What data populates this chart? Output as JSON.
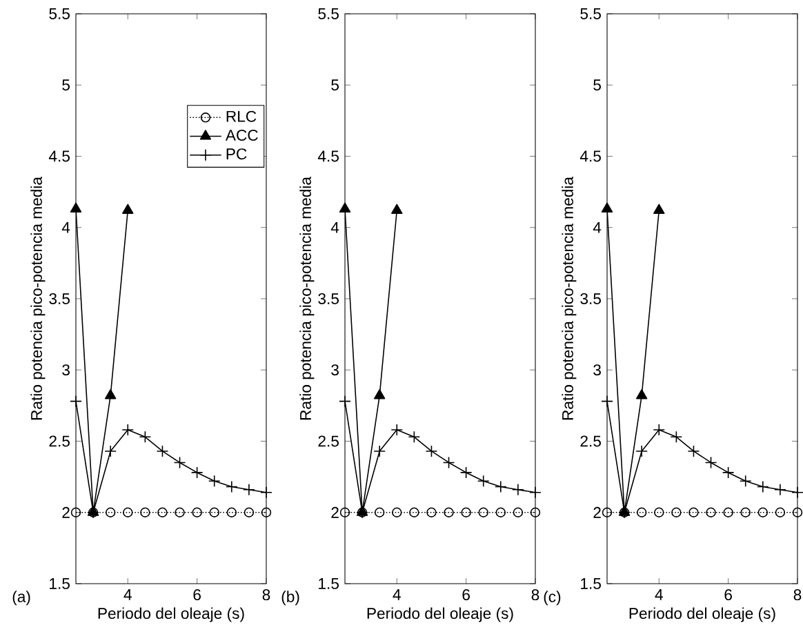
{
  "chart_data": [
    {
      "type": "line",
      "xlabel": "Periodo del oleaje (s)",
      "ylabel": "Ratio potencia pico-potencia media",
      "annotations": [
        "(a)"
      ],
      "x": [
        2.5,
        3,
        3.5,
        4,
        4.5,
        5,
        5.5,
        6,
        6.5,
        7,
        7.5,
        8
      ],
      "xlim": [
        2.5,
        8
      ],
      "ylim": [
        1.5,
        5.5
      ],
      "xticks": [
        4,
        6,
        8
      ],
      "yticks": [
        1.5,
        2,
        2.5,
        3,
        3.5,
        4,
        4.5,
        5,
        5.5
      ],
      "grid": false,
      "legend": "top right",
      "series": [
        {
          "name": "RLC",
          "color": "#000000",
          "marker": "circle",
          "line_style": "dotted",
          "values": [
            2,
            2,
            2,
            2,
            2,
            2,
            2,
            2,
            2,
            2,
            2,
            2
          ]
        },
        {
          "name": "ACC",
          "color": "#000000",
          "marker": "triangle",
          "line_style": "solid",
          "values": [
            4.13,
            2,
            2.82,
            4.12,
            null,
            null,
            null,
            null,
            null,
            null,
            null,
            null
          ]
        },
        {
          "name": "PC",
          "color": "#000000",
          "marker": "cross",
          "line_style": "solid",
          "values": [
            2.78,
            2,
            2.43,
            2.58,
            2.53,
            2.43,
            2.35,
            2.28,
            2.22,
            2.18,
            2.16,
            2.14
          ]
        }
      ]
    },
    {
      "type": "line",
      "xlabel": "Periodo del oleaje (s)",
      "ylabel": "Ratio potencia pico-potencia media",
      "annotations": [
        "(b)"
      ],
      "x": [
        2.5,
        3,
        3.5,
        4,
        4.5,
        5,
        5.5,
        6,
        6.5,
        7,
        7.5,
        8
      ],
      "xlim": [
        2.5,
        8
      ],
      "ylim": [
        1.5,
        5.5
      ],
      "xticks": [
        4,
        6,
        8
      ],
      "yticks": [
        1.5,
        2,
        2.5,
        3,
        3.5,
        4,
        4.5,
        5,
        5.5
      ],
      "grid": false,
      "series": [
        {
          "color": "#000000",
          "marker": "circle",
          "line_style": "dotted",
          "values": [
            2,
            2,
            2,
            2,
            2,
            2,
            2,
            2,
            2,
            2,
            2,
            2
          ]
        },
        {
          "color": "#000000",
          "marker": "triangle",
          "line_style": "solid",
          "values": [
            4.13,
            2,
            2.82,
            4.12,
            null,
            null,
            null,
            null,
            null,
            null,
            null,
            null
          ]
        },
        {
          "color": "#000000",
          "marker": "cross",
          "line_style": "solid",
          "values": [
            2.78,
            2,
            2.43,
            2.58,
            2.53,
            2.43,
            2.35,
            2.28,
            2.22,
            2.18,
            2.16,
            2.14
          ]
        }
      ]
    },
    {
      "type": "line",
      "xlabel": "Periodo del oleaje (s)",
      "ylabel": "Ratio potencia pico-potencia media",
      "annotations": [
        "(c)"
      ],
      "x": [
        2.5,
        3,
        3.5,
        4,
        4.5,
        5,
        5.5,
        6,
        6.5,
        7,
        7.5,
        8
      ],
      "xlim": [
        2.5,
        8
      ],
      "ylim": [
        1.5,
        5.5
      ],
      "xticks": [
        4,
        6,
        8
      ],
      "yticks": [
        1.5,
        2,
        2.5,
        3,
        3.5,
        4,
        4.5,
        5,
        5.5
      ],
      "grid": false,
      "series": [
        {
          "color": "#000000",
          "marker": "circle",
          "line_style": "dotted",
          "values": [
            2,
            2,
            2,
            2,
            2,
            2,
            2,
            2,
            2,
            2,
            2,
            2
          ]
        },
        {
          "color": "#000000",
          "marker": "triangle",
          "line_style": "solid",
          "values": [
            4.13,
            2,
            2.82,
            4.12,
            null,
            null,
            null,
            null,
            null,
            null,
            null,
            null
          ]
        },
        {
          "color": "#000000",
          "marker": "cross",
          "line_style": "solid",
          "values": [
            2.78,
            2,
            2.43,
            2.58,
            2.53,
            2.43,
            2.35,
            2.28,
            2.22,
            2.18,
            2.16,
            2.14
          ]
        }
      ]
    }
  ]
}
